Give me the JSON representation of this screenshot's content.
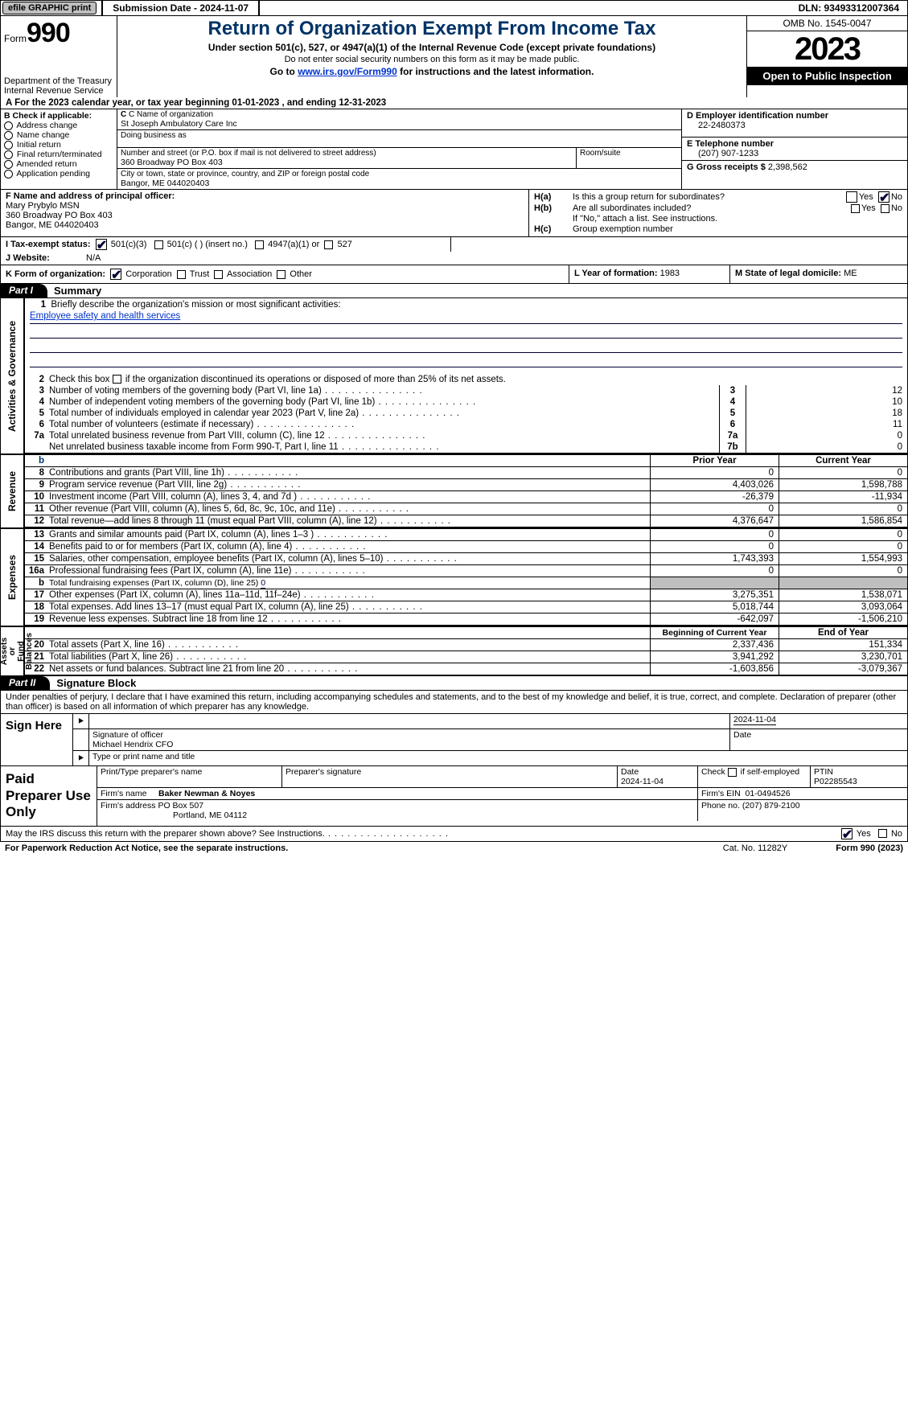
{
  "topbar": {
    "efile": "efile GRAPHIC print",
    "submission": "Submission Date - 2024-11-07",
    "dln": "DLN: 93493312007364"
  },
  "header": {
    "form_word": "Form",
    "form_no": "990",
    "dept": "Department of the Treasury\nInternal Revenue Service",
    "title": "Return of Organization Exempt From Income Tax",
    "sub1": "Under section 501(c), 527, or 4947(a)(1) of the Internal Revenue Code (except private foundations)",
    "sub2": "Do not enter social security numbers on this form as it may be made public.",
    "sub3_pre": "Go to ",
    "sub3_link": "www.irs.gov/Form990",
    "sub3_post": " for instructions and the latest information.",
    "omb": "OMB No. 1545-0047",
    "year": "2023",
    "inspect": "Open to Public Inspection"
  },
  "lineA": "A For the 2023 calendar year, or tax year beginning 01-01-2023   , and ending 12-31-2023",
  "boxB": {
    "title": "B Check if applicable:",
    "items": [
      "Address change",
      "Name change",
      "Initial return",
      "Final return/terminated",
      "Amended return",
      "Application pending"
    ]
  },
  "boxC": {
    "name_lbl": "C Name of organization",
    "name": "St Joseph Ambulatory Care Inc",
    "dba_lbl": "Doing business as",
    "dba": "",
    "street_lbl": "Number and street (or P.O. box if mail is not delivered to street address)",
    "room_lbl": "Room/suite",
    "street": "360 Broadway PO Box 403",
    "city_lbl": "City or town, state or province, country, and ZIP or foreign postal code",
    "city": "Bangor, ME  044020403"
  },
  "boxDE": {
    "d_lbl": "D Employer identification number",
    "d": "22-2480373",
    "e_lbl": "E Telephone number",
    "e": "(207) 907-1233",
    "g_lbl": "G Gross receipts $",
    "g": "2,398,562"
  },
  "boxF": {
    "lbl": "F Name and address of principal officer:",
    "name": "Mary Prybylo MSN",
    "addr1": "360 Broadway PO Box 403",
    "addr2": "Bangor, ME  044020403"
  },
  "boxH": {
    "a_lbl": "H(a)",
    "a_txt": "Is this a group return for subordinates?",
    "a_yes": "Yes",
    "a_no": "No",
    "b_lbl": "H(b)",
    "b_txt": "Are all subordinates included?",
    "b_note": "If \"No,\" attach a list. See instructions.",
    "c_lbl": "H(c)",
    "c_txt": "Group exemption number"
  },
  "boxI": {
    "lbl": "I   Tax-exempt status:",
    "opts": [
      "501(c)(3)",
      "501(c) (  ) (insert no.)",
      "4947(a)(1) or",
      "527"
    ]
  },
  "boxJ": {
    "lbl": "J   Website:",
    "val": "N/A"
  },
  "boxK": {
    "lbl": "K Form of organization:",
    "opts": [
      "Corporation",
      "Trust",
      "Association",
      "Other"
    ]
  },
  "boxL": {
    "lbl": "L Year of formation:",
    "val": "1983"
  },
  "boxM": {
    "lbl": "M State of legal domicile:",
    "val": "ME"
  },
  "part1": {
    "tab": "Part I",
    "title": "Summary"
  },
  "mission": {
    "ln": "1",
    "prompt": "Briefly describe the organization's mission or most significant activities:",
    "text": "Employee safety and health services"
  },
  "line2": {
    "ln": "2",
    "txt": "Check this box ",
    "post": " if the organization discontinued its operations or disposed of more than 25% of its net assets."
  },
  "gov_rows": [
    {
      "ln": "3",
      "desc": "Number of voting members of the governing body (Part VI, line 1a)",
      "box": "3",
      "val": "12"
    },
    {
      "ln": "4",
      "desc": "Number of independent voting members of the governing body (Part VI, line 1b)",
      "box": "4",
      "val": "10"
    },
    {
      "ln": "5",
      "desc": "Total number of individuals employed in calendar year 2023 (Part V, line 2a)",
      "box": "5",
      "val": "18"
    },
    {
      "ln": "6",
      "desc": "Total number of volunteers (estimate if necessary)",
      "box": "6",
      "val": "11"
    },
    {
      "ln": "7a",
      "desc": "Total unrelated business revenue from Part VIII, column (C), line 12",
      "box": "7a",
      "val": "0"
    },
    {
      "ln": "",
      "desc": "Net unrelated business taxable income from Form 990-T, Part I, line 11",
      "box": "7b",
      "val": "0"
    }
  ],
  "rev_header": {
    "py": "Prior Year",
    "cy": "Current Year"
  },
  "rev_rows": [
    {
      "ln": "8",
      "desc": "Contributions and grants (Part VIII, line 1h)",
      "py": "0",
      "cy": "0"
    },
    {
      "ln": "9",
      "desc": "Program service revenue (Part VIII, line 2g)",
      "py": "4,403,026",
      "cy": "1,598,788"
    },
    {
      "ln": "10",
      "desc": "Investment income (Part VIII, column (A), lines 3, 4, and 7d )",
      "py": "-26,379",
      "cy": "-11,934"
    },
    {
      "ln": "11",
      "desc": "Other revenue (Part VIII, column (A), lines 5, 6d, 8c, 9c, 10c, and 11e)",
      "py": "0",
      "cy": "0"
    },
    {
      "ln": "12",
      "desc": "Total revenue—add lines 8 through 11 (must equal Part VIII, column (A), line 12)",
      "py": "4,376,647",
      "cy": "1,586,854"
    }
  ],
  "exp_rows": [
    {
      "ln": "13",
      "desc": "Grants and similar amounts paid (Part IX, column (A), lines 1–3 )",
      "py": "0",
      "cy": "0"
    },
    {
      "ln": "14",
      "desc": "Benefits paid to or for members (Part IX, column (A), line 4)",
      "py": "0",
      "cy": "0"
    },
    {
      "ln": "15",
      "desc": "Salaries, other compensation, employee benefits (Part IX, column (A), lines 5–10)",
      "py": "1,743,393",
      "cy": "1,554,993"
    },
    {
      "ln": "16a",
      "desc": "Professional fundraising fees (Part IX, column (A), line 11e)",
      "py": "0",
      "cy": "0"
    },
    {
      "ln": "b",
      "desc": "Total fundraising expenses (Part IX, column (D), line 25) 0",
      "py": "",
      "cy": "",
      "shade": true,
      "indent": true
    },
    {
      "ln": "17",
      "desc": "Other expenses (Part IX, column (A), lines 11a–11d, 11f–24e)",
      "py": "3,275,351",
      "cy": "1,538,071"
    },
    {
      "ln": "18",
      "desc": "Total expenses. Add lines 13–17 (must equal Part IX, column (A), line 25)",
      "py": "5,018,744",
      "cy": "3,093,064"
    },
    {
      "ln": "19",
      "desc": "Revenue less expenses. Subtract line 18 from line 12",
      "py": "-642,097",
      "cy": "-1,506,210"
    }
  ],
  "na_header": {
    "by": "Beginning of Current Year",
    "ey": "End of Year"
  },
  "na_rows": [
    {
      "ln": "20",
      "desc": "Total assets (Part X, line 16)",
      "py": "2,337,436",
      "cy": "151,334"
    },
    {
      "ln": "21",
      "desc": "Total liabilities (Part X, line 26)",
      "py": "3,941,292",
      "cy": "3,230,701"
    },
    {
      "ln": "22",
      "desc": "Net assets or fund balances. Subtract line 21 from line 20",
      "py": "-1,603,856",
      "cy": "-3,079,367"
    }
  ],
  "vtabs": {
    "gov": "Activities & Governance",
    "rev": "Revenue",
    "exp": "Expenses",
    "na": "Net Assets or\nFund Balances"
  },
  "part2": {
    "tab": "Part II",
    "title": "Signature Block"
  },
  "decl": "Under penalties of perjury, I declare that I have examined this return, including accompanying schedules and statements, and to the best of my knowledge and belief, it is true, correct, and complete. Declaration of preparer (other than officer) is based on all information of which preparer has any knowledge.",
  "sign": {
    "here": "Sign Here",
    "date_top": "2024-11-04",
    "sig_lbl": "Signature of officer",
    "date_lbl": "Date",
    "officer": "Michael Hendrix CFO",
    "type_lbl": "Type or print name and title"
  },
  "prep": {
    "title": "Paid Preparer Use Only",
    "pname_lbl": "Print/Type preparer's name",
    "psig_lbl": "Preparer's signature",
    "pname": "",
    "pdate_lbl": "Date",
    "pdate": "2024-11-04",
    "pself_lbl": "Check         if self-employed",
    "ptin_lbl": "PTIN",
    "ptin": "P02285543",
    "firm_lbl": "Firm's name",
    "firm": "Baker Newman & Noyes",
    "fein_lbl": "Firm's EIN",
    "fein": "01-0494526",
    "faddr_lbl": "Firm's address",
    "faddr1": "PO Box 507",
    "faddr2": "Portland, ME  04112",
    "fphone_lbl": "Phone no.",
    "fphone": "(207) 879-2100"
  },
  "discuss": {
    "txt": "May the IRS discuss this return with the preparer shown above? See Instructions.",
    "yes": "Yes",
    "no": "No"
  },
  "footer": {
    "pra": "For Paperwork Reduction Act Notice, see the separate instructions.",
    "cat": "Cat. No. 11282Y",
    "form": "Form 990 (2023)"
  }
}
